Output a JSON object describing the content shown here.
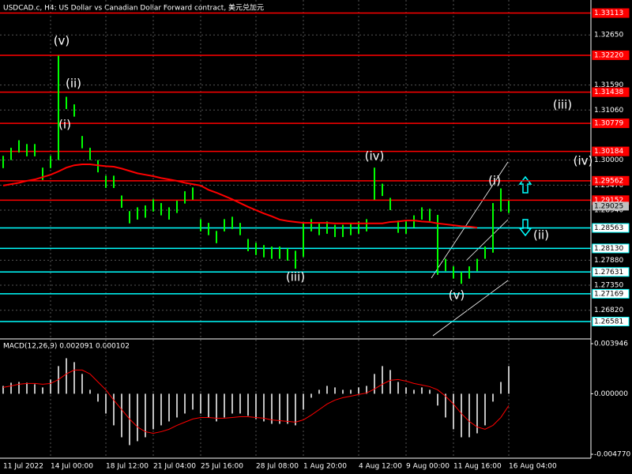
{
  "chart_data": [
    {
      "type": "hilo",
      "title": "USDCAD.c, H4:  US Dollar vs Canadian Dollar Forward contract, 美元兑加元",
      "categories": [
        "11 Jul 2022",
        null,
        null,
        null,
        null,
        null,
        "14 Jul 00:00",
        null,
        null,
        null,
        null,
        null,
        null,
        "18 Jul 12:00",
        null,
        null,
        null,
        null,
        null,
        "21 Jul 04:00",
        null,
        null,
        null,
        null,
        null,
        "25 Jul 16:00",
        null,
        null,
        null,
        null,
        null,
        null,
        "28 Jul 08:00",
        null,
        null,
        null,
        null,
        null,
        "1 Aug 20:00",
        null,
        null,
        null,
        null,
        null,
        null,
        "4 Aug 12:00",
        null,
        null,
        null,
        null,
        null,
        "9 Aug 00:00",
        null,
        null,
        null,
        null,
        null,
        "11 Aug 16:00",
        null,
        null,
        null,
        null,
        null,
        null,
        "16 Aug 04:00"
      ],
      "high": [
        1.3009,
        1.3026,
        1.3042,
        1.3034,
        1.3034,
        1.2984,
        1.3009,
        1.3221,
        1.3134,
        1.3118,
        1.3051,
        1.3026,
        1.3,
        1.2967,
        1.2967,
        1.2925,
        1.2892,
        1.29,
        1.2904,
        1.2917,
        1.2909,
        1.29,
        1.2914,
        1.2934,
        1.2942,
        1.2875,
        1.2867,
        1.285,
        1.2875,
        1.288,
        1.2867,
        1.2833,
        1.2825,
        1.282,
        1.2817,
        1.2817,
        1.2813,
        1.2808,
        1.2867,
        1.2875,
        1.2867,
        1.287,
        1.2863,
        1.2863,
        1.2867,
        1.287,
        1.2875,
        1.2984,
        1.295,
        1.292,
        1.2872,
        1.287,
        1.2883,
        1.29,
        1.2897,
        1.2884,
        1.2791,
        1.2775,
        1.2763,
        1.2775,
        1.2791,
        1.2817,
        1.2909,
        1.294,
        1.2914
      ],
      "low": [
        1.2983,
        1.3,
        1.3016,
        1.3008,
        1.3008,
        1.2958,
        1.2983,
        1.3,
        1.3108,
        1.3092,
        1.3025,
        1.3,
        1.2974,
        1.2941,
        1.2941,
        1.2899,
        1.2866,
        1.2874,
        1.2878,
        1.2891,
        1.2883,
        1.2874,
        1.2888,
        1.2908,
        1.2916,
        1.2849,
        1.2841,
        1.2824,
        1.2849,
        1.2854,
        1.2841,
        1.2807,
        1.2799,
        1.2794,
        1.2791,
        1.2791,
        1.2787,
        1.277,
        1.2795,
        1.2849,
        1.2841,
        1.2844,
        1.2837,
        1.2837,
        1.2841,
        1.2844,
        1.2849,
        1.2916,
        1.2924,
        1.2894,
        1.2846,
        1.2844,
        1.2857,
        1.2874,
        1.2871,
        1.2757,
        1.2765,
        1.2749,
        1.2738,
        1.2749,
        1.2765,
        1.2791,
        1.2804,
        1.2891,
        1.2888
      ],
      "color": "#00ff00",
      "ma": [
        1.2946,
        1.2949,
        1.2952,
        1.2956,
        1.2959,
        1.2964,
        1.2969,
        1.2976,
        1.2984,
        1.2989,
        1.2991,
        1.2991,
        1.2989,
        1.2987,
        1.2986,
        1.2982,
        1.2977,
        1.2972,
        1.2969,
        1.2966,
        1.2962,
        1.2959,
        1.2956,
        1.2952,
        1.2949,
        1.2946,
        1.2937,
        1.2931,
        1.2924,
        1.2917,
        1.2909,
        1.2901,
        1.2894,
        1.2887,
        1.2881,
        1.2874,
        1.2871,
        1.2869,
        1.2867,
        1.2867,
        1.2867,
        1.2867,
        1.2866,
        1.2866,
        1.2866,
        1.2866,
        1.2866,
        1.2866,
        1.2866,
        1.2869,
        1.287,
        1.2872,
        1.2872,
        1.287,
        1.2869,
        1.2866,
        1.2864,
        1.2862,
        1.286,
        1.2859,
        1.2857,
        null,
        null,
        null,
        null
      ],
      "ma_color": "#ff0000",
      "ylim": [
        1.2623,
        1.3339
      ],
      "yticks": [
        {
          "value": 1.3265,
          "label": "1.32650"
        },
        {
          "value": 1.3159,
          "label": "1.31590"
        },
        {
          "value": 1.3106,
          "label": "1.31060"
        },
        {
          "value": 1.3,
          "label": "1.30000"
        },
        {
          "value": 1.2947,
          "label": "1.29470"
        },
        {
          "value": 1.2894,
          "label": "1.28940"
        },
        {
          "value": 1.2788,
          "label": "1.27880"
        },
        {
          "value": 1.2735,
          "label": "1.27350"
        },
        {
          "value": 1.2682,
          "label": "1.26820"
        }
      ],
      "levels": [
        1.33113,
        {
          "value": 1.3222,
          "label": "1.32220"
        },
        1.31438,
        1.30779,
        1.30184,
        1.29562,
        1.29152,
        1.28563,
        {
          "value": 1.2813,
          "label": "1.28130"
        },
        1.27631,
        1.27169,
        1.26581
      ],
      "level_colors": [
        "#ff0000",
        "#ff0000",
        "#ff0000",
        "#ff0000",
        "#ff0000",
        "#ff0000",
        "#ff0000",
        "#00ffff",
        "#00ffff",
        "#00ffff",
        "#00ffff",
        "#00ffff"
      ],
      "last_price": 1.29025,
      "annotations": [
        "(v)",
        "(ii)",
        "(i)",
        "(iii)",
        "(iv)",
        "(v)",
        "(i)",
        "(ii)",
        "(iii)",
        "(iv)"
      ],
      "grid": true
    },
    {
      "type": "macd",
      "label": "MACD(12,26,9) 0.002091 0.000102",
      "values": [
        0.00062,
        0.00087,
        0.00093,
        0.00087,
        0.00075,
        0.0005,
        0.00112,
        0.00218,
        0.0028,
        0.00249,
        0.00156,
        0.00031,
        -0.00062,
        -0.00156,
        -0.00249,
        -0.00343,
        -0.00405,
        -0.00374,
        -0.00343,
        -0.0028,
        -0.00249,
        -0.00218,
        -0.00187,
        -0.00156,
        -0.00125,
        -0.00156,
        -0.00187,
        -0.00218,
        -0.00187,
        -0.00156,
        -0.00156,
        -0.00174,
        -0.00199,
        -0.00218,
        -0.00237,
        -0.00237,
        -0.00237,
        -0.00249,
        -0.00125,
        -0.00031,
        0.00031,
        0.00062,
        0.0005,
        0.00031,
        0.00031,
        0.0005,
        0.00062,
        0.00156,
        0.00218,
        0.00187,
        0.00093,
        0.0005,
        0.00031,
        0.0005,
        0.00031,
        -0.00093,
        -0.00187,
        -0.0028,
        -0.00343,
        -0.00343,
        -0.00312,
        -0.00249,
        -0.00062,
        0.00093,
        0.00218
      ],
      "color": "#c0c0c0",
      "signal": [
        0.0005,
        0.00062,
        0.00075,
        0.00081,
        0.00081,
        0.00075,
        0.00081,
        0.00112,
        0.00156,
        0.00187,
        0.00187,
        0.00156,
        0.00093,
        0.00031,
        -0.0005,
        -0.00125,
        -0.00199,
        -0.00262,
        -0.00299,
        -0.00312,
        -0.00299,
        -0.0028,
        -0.00249,
        -0.00224,
        -0.00199,
        -0.00187,
        -0.00187,
        -0.00193,
        -0.00193,
        -0.00187,
        -0.00181,
        -0.00181,
        -0.00187,
        -0.00193,
        -0.00206,
        -0.00212,
        -0.00218,
        -0.00224,
        -0.00206,
        -0.00168,
        -0.00125,
        -0.00081,
        -0.0005,
        -0.00031,
        -0.00019,
        -6e-05,
        6e-05,
        0.00037,
        0.00075,
        0.00106,
        0.00112,
        0.001,
        0.00081,
        0.00069,
        0.00056,
        0.00031,
        -0.00019,
        -0.00081,
        -0.00156,
        -0.00218,
        -0.00262,
        -0.0028,
        -0.00249,
        -0.00187,
        -0.00093
      ],
      "signal_color": "#ff0000",
      "ylim": [
        -0.00508,
        0.00426
      ],
      "yticks": [
        0.003946,
        {
          "value": 0,
          "label": "0.000000"
        },
        {
          "value": -0.00477,
          "label": "-0.004770"
        }
      ]
    }
  ]
}
